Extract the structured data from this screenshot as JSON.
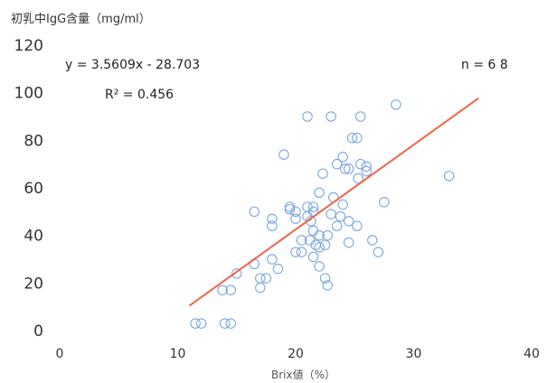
{
  "chart_data": {
    "type": "scatter",
    "title": "",
    "ylabel": "初乳中IgG含量（mg/ml）",
    "xlabel": "Brix値（%）",
    "xlim": [
      0,
      40
    ],
    "ylim": [
      0,
      120
    ],
    "xticks": [
      "0",
      "10",
      "20",
      "30",
      "40"
    ],
    "yticks": [
      "0",
      "20",
      "40",
      "60",
      "80",
      "100",
      "120"
    ],
    "grid": false,
    "series": [
      {
        "marker": "open-circle",
        "color": "#7aa6e0",
        "points": [
          [
            11.5,
            3
          ],
          [
            12,
            3
          ],
          [
            14,
            3
          ],
          [
            14.5,
            3
          ],
          [
            13.8,
            17
          ],
          [
            14.5,
            17
          ],
          [
            15,
            24
          ],
          [
            16.5,
            28
          ],
          [
            17,
            22
          ],
          [
            17,
            18
          ],
          [
            17.5,
            22
          ],
          [
            18,
            30
          ],
          [
            18.5,
            26
          ],
          [
            18,
            44
          ],
          [
            18,
            47
          ],
          [
            16.5,
            50
          ],
          [
            19,
            74
          ],
          [
            19.5,
            51
          ],
          [
            20,
            47
          ],
          [
            20,
            50
          ],
          [
            20.5,
            38
          ],
          [
            20,
            33
          ],
          [
            20.5,
            33
          ],
          [
            21,
            48
          ],
          [
            21,
            52
          ],
          [
            21.2,
            38
          ],
          [
            21.3,
            46
          ],
          [
            21.5,
            52
          ],
          [
            21.5,
            42
          ],
          [
            21.5,
            31
          ],
          [
            21.7,
            36
          ],
          [
            22,
            40
          ],
          [
            22,
            35
          ],
          [
            22,
            27
          ],
          [
            22,
            58
          ],
          [
            22.3,
            66
          ],
          [
            22.5,
            22
          ],
          [
            22.5,
            36
          ],
          [
            22.7,
            19
          ],
          [
            22.7,
            40
          ],
          [
            23,
            49
          ],
          [
            23.2,
            56
          ],
          [
            23.5,
            44
          ],
          [
            23.5,
            70
          ],
          [
            23.8,
            48
          ],
          [
            24,
            73
          ],
          [
            24,
            53
          ],
          [
            24.2,
            68
          ],
          [
            24.5,
            37
          ],
          [
            24.5,
            46
          ],
          [
            24.8,
            81
          ],
          [
            25.2,
            81
          ],
          [
            25.2,
            44
          ],
          [
            25.3,
            64
          ],
          [
            25.5,
            90
          ],
          [
            25.5,
            70
          ],
          [
            26,
            67
          ],
          [
            26,
            69
          ],
          [
            26.5,
            38
          ],
          [
            27,
            33
          ],
          [
            27.5,
            54
          ],
          [
            28.5,
            95
          ],
          [
            33,
            65
          ],
          [
            21,
            90
          ],
          [
            23,
            90
          ],
          [
            19.5,
            52
          ],
          [
            21.5,
            50
          ],
          [
            24.5,
            68
          ]
        ]
      }
    ],
    "trendline": {
      "slope": 3.5609,
      "intercept": -28.703,
      "x_range": [
        11,
        35.5
      ],
      "color": "#f0644a"
    },
    "annotations": {
      "equation": "y = 3.5609x - 28.703",
      "r2": "R² = 0.456",
      "n": "n = 6 8"
    }
  }
}
